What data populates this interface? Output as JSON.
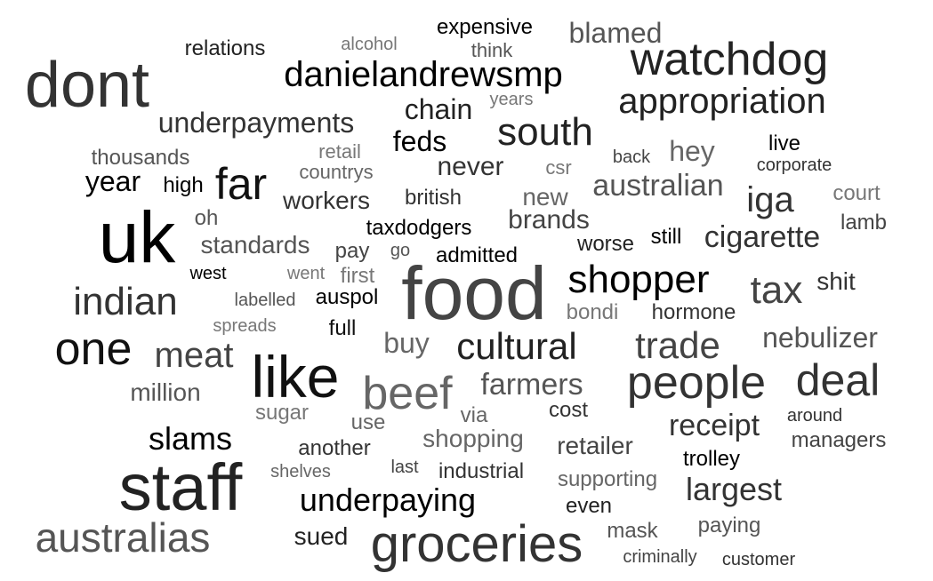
{
  "colors": {
    "background": "#ffffff",
    "shades": [
      "#000000",
      "#222222",
      "#333333",
      "#444444",
      "#555555",
      "#666666",
      "#777777"
    ]
  },
  "words": [
    "dont",
    "uk",
    "staff",
    "food",
    "like",
    "groceries",
    "watchdog",
    "people",
    "australias",
    "deal",
    "beef",
    "one",
    "danielandrewsmp",
    "appropriation",
    "south",
    "far",
    "indian",
    "shopper",
    "cultural",
    "trade",
    "tax",
    "meat",
    "underpayments",
    "underpaying",
    "slams",
    "largest",
    "iga",
    "cigarette",
    "receipt",
    "farmers",
    "australian",
    "nebulizer",
    "blamed",
    "chain",
    "feds",
    "year",
    "never",
    "brands",
    "hey",
    "standards",
    "million",
    "shopping",
    "retailer",
    "expensive",
    "relations",
    "workers",
    "thousands",
    "buy",
    "admitted",
    "taxdodgers",
    "sued",
    "another",
    "industrial",
    "supporting",
    "trolley",
    "managers",
    "shit",
    "new",
    "british",
    "hormone",
    "auspol",
    "mask",
    "paying",
    "high",
    "countrys",
    "retail",
    "think",
    "court",
    "live",
    "lamb",
    "worse",
    "still",
    "sugar",
    "even",
    "cost",
    "criminally",
    "customer",
    "full",
    "spreads",
    "labelled",
    "west",
    "went",
    "first",
    "pay",
    "oh",
    "go",
    "bondi",
    "use",
    "via",
    "around",
    "last",
    "shelves",
    "alcohol",
    "years",
    "csr",
    "back",
    "corporate"
  ]
}
